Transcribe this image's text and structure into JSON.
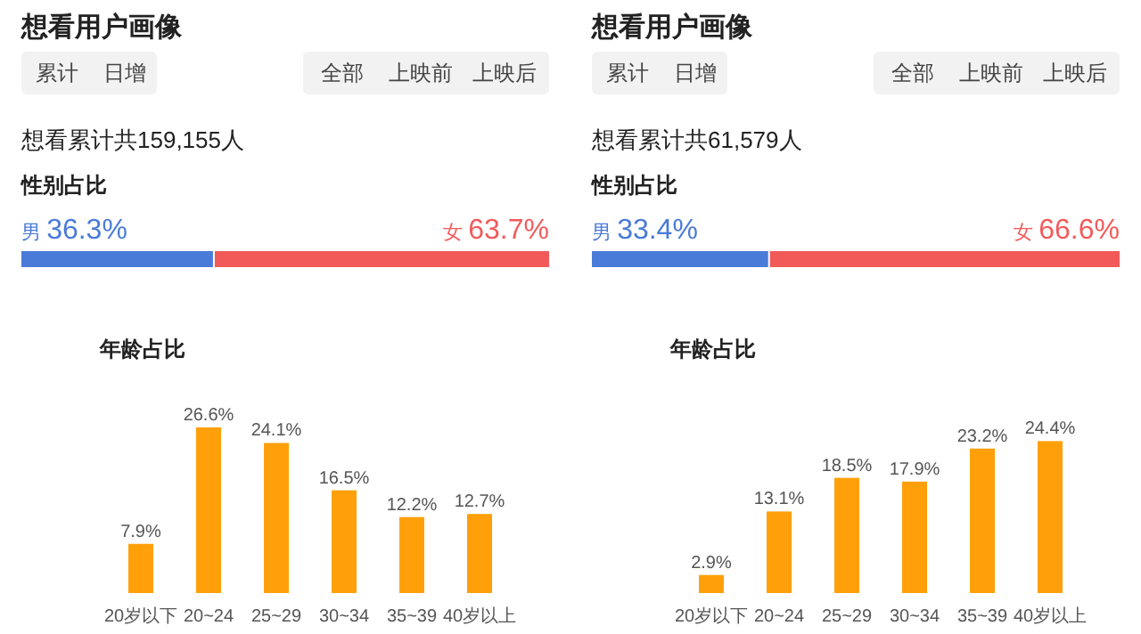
{
  "chart_data": [
    {
      "type": "other",
      "title": "想看用户画像",
      "annotations": [
        "累计",
        "日增",
        "全部",
        "上映前",
        "上映后",
        "想看累计共159,155人"
      ]
    },
    {
      "type": "bar",
      "orientation": "horizontal",
      "stacked": true,
      "title": "性别占比",
      "categories": [
        null
      ],
      "series": [
        {
          "name": "男",
          "color": "#4a7bd8",
          "values": [
            36.3
          ],
          "value_labels": [
            "36.3%"
          ]
        },
        {
          "name": "女",
          "color": "#f25a5a",
          "values": [
            63.7
          ],
          "value_labels": [
            "63.7%"
          ]
        }
      ]
    },
    {
      "type": "bar",
      "title": "年龄占比",
      "categories": [
        "20岁以下",
        "20~24",
        "25~29",
        "30~34",
        "35~39",
        "40岁以上"
      ],
      "color": "#ffa00a",
      "values": [
        7.9,
        26.6,
        24.1,
        16.5,
        12.2,
        12.7
      ],
      "value_labels": [
        "7.9%",
        "26.6%",
        "24.1%",
        "16.5%",
        "12.2%",
        "12.7%"
      ]
    },
    {
      "type": "other",
      "title": "想看用户画像",
      "annotations": [
        "累计",
        "日增",
        "全部",
        "上映前",
        "上映后",
        "想看累计共61,579人"
      ]
    },
    {
      "type": "bar",
      "orientation": "horizontal",
      "stacked": true,
      "title": "性别占比",
      "categories": [
        null
      ],
      "series": [
        {
          "name": "男",
          "color": "#4a7bd8",
          "values": [
            33.4
          ],
          "value_labels": [
            "33.4%"
          ]
        },
        {
          "name": "女",
          "color": "#f25a5a",
          "values": [
            66.6
          ],
          "value_labels": [
            "66.6%"
          ]
        }
      ]
    },
    {
      "type": "bar",
      "title": "年龄占比",
      "categories": [
        "20岁以下",
        "20~24",
        "25~29",
        "30~34",
        "35~39",
        "40岁以上"
      ],
      "color": "#ffa00a",
      "values": [
        2.9,
        13.1,
        18.5,
        17.9,
        23.2,
        24.4
      ],
      "value_labels": [
        "2.9%",
        "13.1%",
        "18.5%",
        "17.9%",
        "23.2%",
        "24.4%"
      ]
    }
  ]
}
